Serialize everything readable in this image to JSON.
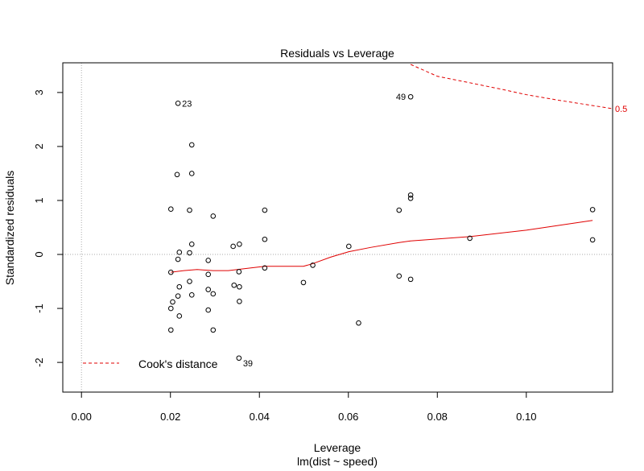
{
  "chart_data": {
    "type": "scatter",
    "title": "Residuals vs Leverage",
    "xlabel": "Leverage",
    "sublabel": "lm(dist ~ speed)",
    "ylabel": "Standardized residuals",
    "xlim": [
      -0.0042,
      0.1194
    ],
    "ylim": [
      -2.55,
      3.55
    ],
    "x_ticks": [
      0.0,
      0.02,
      0.04,
      0.06,
      0.08,
      0.1
    ],
    "x_tick_labels": [
      "0.00",
      "0.02",
      "0.04",
      "0.06",
      "0.08",
      "0.10"
    ],
    "y_ticks": [
      -2,
      -1,
      0,
      1,
      2,
      3
    ],
    "y_tick_labels": [
      "-2",
      "-1",
      "0",
      "1",
      "2",
      "3"
    ],
    "points": [
      [
        0.0217,
        2.8
      ],
      [
        0.0248,
        2.03
      ],
      [
        0.0215,
        1.48
      ],
      [
        0.0248,
        1.5
      ],
      [
        0.0201,
        0.84
      ],
      [
        0.0243,
        0.82
      ],
      [
        0.0296,
        0.71
      ],
      [
        0.0248,
        0.19
      ],
      [
        0.022,
        0.04
      ],
      [
        0.0243,
        0.03
      ],
      [
        0.0217,
        -0.09
      ],
      [
        0.0285,
        -0.11
      ],
      [
        0.0201,
        -0.33
      ],
      [
        0.022,
        -0.6
      ],
      [
        0.0243,
        -0.5
      ],
      [
        0.0285,
        -0.37
      ],
      [
        0.0217,
        -0.77
      ],
      [
        0.0248,
        -0.75
      ],
      [
        0.0285,
        -0.65
      ],
      [
        0.0296,
        -0.73
      ],
      [
        0.0205,
        -0.88
      ],
      [
        0.0201,
        -1.0
      ],
      [
        0.022,
        -1.14
      ],
      [
        0.0285,
        -1.03
      ],
      [
        0.0201,
        -1.4
      ],
      [
        0.0296,
        -1.4
      ],
      [
        0.0341,
        0.15
      ],
      [
        0.0355,
        0.19
      ],
      [
        0.0354,
        -0.32
      ],
      [
        0.0343,
        -0.57
      ],
      [
        0.0355,
        -0.6
      ],
      [
        0.0355,
        -0.87
      ],
      [
        0.0354,
        -1.92
      ],
      [
        0.0412,
        0.82
      ],
      [
        0.0412,
        0.28
      ],
      [
        0.0412,
        -0.25
      ],
      [
        0.0499,
        -0.52
      ],
      [
        0.052,
        -0.2
      ],
      [
        0.0601,
        0.15
      ],
      [
        0.0623,
        -1.27
      ],
      [
        0.0714,
        0.82
      ],
      [
        0.0714,
        -0.4
      ],
      [
        0.074,
        2.92
      ],
      [
        0.074,
        1.1
      ],
      [
        0.074,
        1.04
      ],
      [
        0.074,
        -0.46
      ],
      [
        0.0873,
        0.3
      ],
      [
        0.1149,
        0.83
      ],
      [
        0.1149,
        0.27
      ]
    ],
    "point_labels": [
      {
        "text": "23",
        "x": 0.0217,
        "y": 2.8,
        "side": "right"
      },
      {
        "text": "49",
        "x": 0.074,
        "y": 2.92,
        "side": "left"
      },
      {
        "text": "39",
        "x": 0.0354,
        "y": -1.92,
        "side": "right-below"
      }
    ],
    "smooth_line": [
      [
        0.0201,
        -0.33
      ],
      [
        0.023,
        -0.3
      ],
      [
        0.026,
        -0.28
      ],
      [
        0.0296,
        -0.3
      ],
      [
        0.033,
        -0.3
      ],
      [
        0.036,
        -0.27
      ],
      [
        0.0412,
        -0.22
      ],
      [
        0.046,
        -0.22
      ],
      [
        0.0499,
        -0.22
      ],
      [
        0.052,
        -0.17
      ],
      [
        0.056,
        -0.05
      ],
      [
        0.0601,
        0.05
      ],
      [
        0.065,
        0.13
      ],
      [
        0.0714,
        0.22
      ],
      [
        0.074,
        0.25
      ],
      [
        0.0873,
        0.33
      ],
      [
        0.1,
        0.45
      ],
      [
        0.1149,
        0.63
      ]
    ],
    "cook_contour": [
      [
        0.074,
        3.52
      ],
      [
        0.08,
        3.3
      ],
      [
        0.0873,
        3.18
      ],
      [
        0.095,
        3.05
      ],
      [
        0.1,
        2.96
      ],
      [
        0.107,
        2.86
      ],
      [
        0.1194,
        2.7
      ]
    ],
    "cook_contour_label": "0.5",
    "legend": {
      "label": "Cook's distance",
      "placement": "bottom-left"
    },
    "grid": false,
    "colors": {
      "points": "#000000",
      "smooth": "#e00000",
      "cook": "#e00000",
      "reference": "#aaaaaa"
    }
  }
}
